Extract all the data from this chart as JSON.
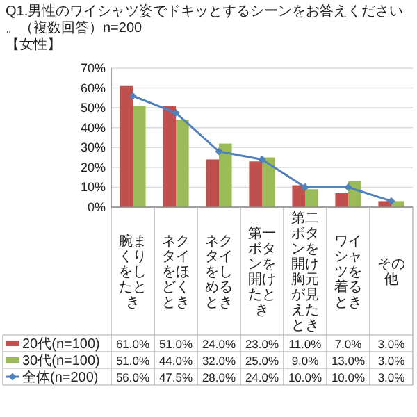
{
  "chart_data": {
    "type": "bar",
    "title": "Q1.男性のワイシャツ姿でドキッとするシーンをお答えください。（複数回答）n=200",
    "subtitle": "【女性】",
    "categories": [
      "腕まくりをしたとき",
      "ネクタイをほどくとき",
      "ネクタイをしめるとき",
      "第一ボタンを開けたとき",
      "第二ボタンを開け胸元が見えたとき",
      "ワイシャツを着るとき",
      "その他"
    ],
    "ylim": [
      0,
      70
    ],
    "yticks": [
      {
        "value": 0,
        "label": "0%"
      },
      {
        "value": 10,
        "label": "10%"
      },
      {
        "value": 20,
        "label": "20%"
      },
      {
        "value": 30,
        "label": "30%"
      },
      {
        "value": 40,
        "label": "40%"
      },
      {
        "value": 50,
        "label": "50%"
      },
      {
        "value": 60,
        "label": "60%"
      },
      {
        "value": 70,
        "label": "70%"
      }
    ],
    "grid": "y",
    "legend": "bottom",
    "series": [
      {
        "name": "20代(n=100)",
        "color": "#c0504d",
        "values": [
          61,
          51,
          24,
          23,
          11,
          7,
          3
        ],
        "value_labels": [
          "61.0%",
          "51.0%",
          "24.0%",
          "23.0%",
          "11.0%",
          "7.0%",
          "3.0%"
        ]
      },
      {
        "name": "30代(n=100)",
        "color": "#9bbb59",
        "values": [
          51,
          44,
          32,
          25,
          9,
          13,
          3
        ],
        "value_labels": [
          "51.0%",
          "44.0%",
          "32.0%",
          "25.0%",
          "9.0%",
          "13.0%",
          "3.0%"
        ]
      },
      {
        "name": "全体(n=200)",
        "type": "line",
        "marker": "diamond",
        "color": "#4f81bd",
        "values": [
          56,
          47.5,
          28,
          24,
          10,
          10,
          3
        ],
        "value_labels": [
          "56.0%",
          "47.5%",
          "28.0%",
          "24.0%",
          "10.0%",
          "10.0%",
          "3.0%"
        ]
      }
    ]
  }
}
